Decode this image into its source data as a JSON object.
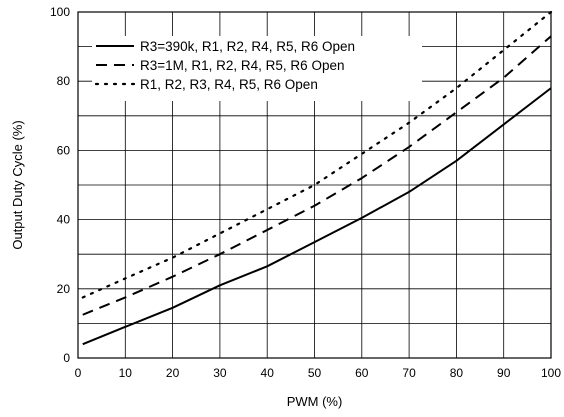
{
  "chart_data": {
    "type": "line",
    "title": "",
    "xlabel": "PWM (%)",
    "ylabel": "Output Duty Cycle (%)",
    "xlim": [
      0,
      100
    ],
    "ylim": [
      0,
      100
    ],
    "x_ticks": [
      0,
      10,
      20,
      30,
      40,
      50,
      60,
      70,
      80,
      90,
      100
    ],
    "y_ticks": [
      0,
      20,
      40,
      60,
      80,
      100
    ],
    "grid": true,
    "legend_position": "top-left",
    "series": [
      {
        "name": "R3=390k, R1, R2, R4, R5, R6 Open",
        "style": "solid",
        "color": "#000000",
        "x": [
          1,
          10,
          20,
          30,
          40,
          50,
          60,
          70,
          80,
          90,
          100
        ],
        "y": [
          4,
          9,
          14.5,
          21,
          26.5,
          33.5,
          40.5,
          48,
          57,
          67.5,
          78
        ]
      },
      {
        "name": "R3=1M, R1, R2, R4, R5, R6 Open",
        "style": "dashed",
        "color": "#000000",
        "x": [
          1,
          10,
          20,
          30,
          40,
          50,
          60,
          70,
          80,
          90,
          100
        ],
        "y": [
          12.5,
          17.5,
          23.5,
          30,
          37,
          44,
          52,
          61,
          71,
          81,
          93
        ]
      },
      {
        "name": "R1, R2, R3, R4, R5, R6 Open",
        "style": "dotted",
        "color": "#000000",
        "x": [
          1,
          10,
          20,
          30,
          40,
          50,
          60,
          70,
          80,
          90,
          100
        ],
        "y": [
          17.5,
          23,
          29,
          36,
          43,
          50,
          59,
          68,
          78,
          89,
          100
        ]
      }
    ]
  }
}
